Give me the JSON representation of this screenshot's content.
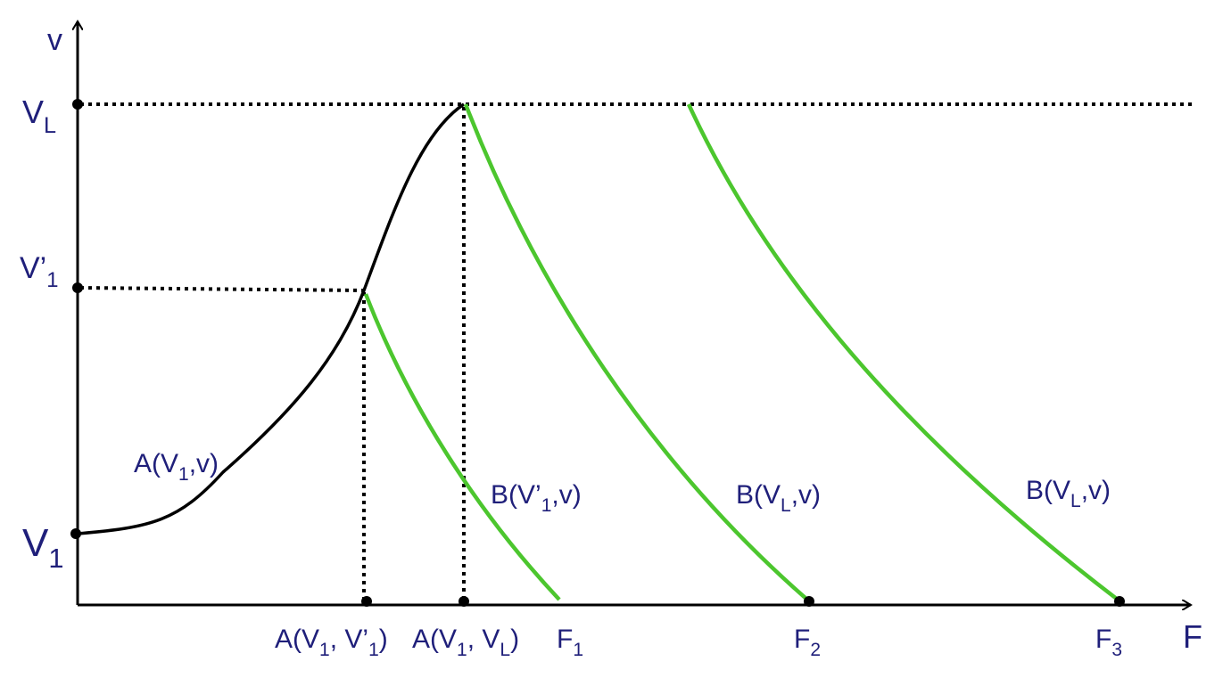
{
  "axes": {
    "y": "v",
    "x": "F"
  },
  "levels": [
    [
      "V",
      "L"
    ],
    [
      "V’",
      "1"
    ],
    [
      "V",
      "1"
    ]
  ],
  "curve_labels": [
    [
      "A(V",
      "1",
      ",v)"
    ],
    [
      "B(V’",
      "1",
      ",v)"
    ],
    [
      "B(V",
      "L",
      ",v)"
    ],
    [
      "B(V",
      "L",
      ",v)"
    ]
  ],
  "x_labels": [
    [
      "A(V",
      "1",
      ", V’",
      "1",
      ")"
    ],
    [
      "A(V",
      "1",
      ", V",
      "L",
      ")"
    ],
    [
      "F",
      "1"
    ],
    [
      "F",
      "2"
    ],
    [
      "F",
      "3"
    ]
  ]
}
